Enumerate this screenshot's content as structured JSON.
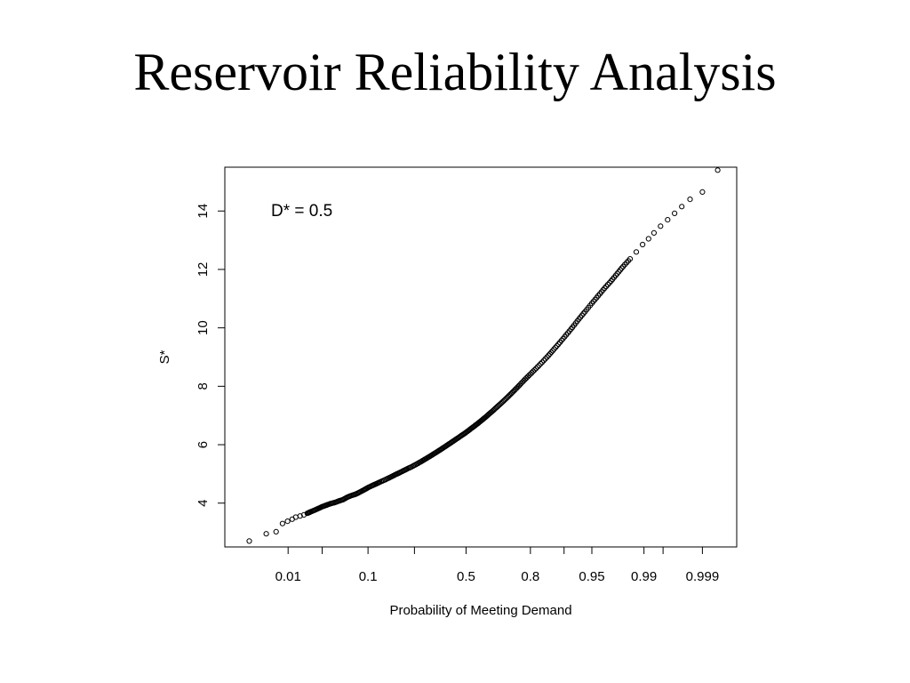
{
  "slide": {
    "title": "Reservoir Reliability Analysis"
  },
  "chart_data": {
    "type": "scatter",
    "annotation": "D* = 0.5",
    "xlabel": "Probability of Meeting Demand",
    "ylabel": "S*",
    "x_scale": "normal-probability",
    "x_ticks": [
      0.01,
      0.03,
      0.1,
      0.25,
      0.5,
      0.8,
      0.9,
      0.95,
      0.99,
      0.995,
      0.999
    ],
    "x_tick_labels": [
      "0.01",
      "",
      "0.1",
      "",
      "0.5",
      "0.8",
      "",
      "0.95",
      "0.99",
      "",
      "0.999"
    ],
    "y_ticks": [
      4,
      6,
      8,
      10,
      12,
      14
    ],
    "ylim": [
      2.5,
      15.5
    ],
    "xlim_probability": [
      0.0015,
      0.9996
    ],
    "grid": false,
    "marker": "open-circle",
    "points": [
      [
        0.0023,
        2.7
      ],
      [
        0.0045,
        2.95
      ],
      [
        0.0065,
        3.02
      ],
      [
        0.0082,
        3.3
      ],
      [
        0.0098,
        3.38
      ],
      [
        0.0115,
        3.45
      ],
      [
        0.013,
        3.52
      ],
      [
        0.015,
        3.56
      ],
      [
        0.017,
        3.6
      ],
      [
        0.019,
        3.65
      ],
      [
        0.021,
        3.7
      ],
      [
        0.024,
        3.76
      ],
      [
        0.027,
        3.82
      ],
      [
        0.03,
        3.88
      ],
      [
        0.034,
        3.93
      ],
      [
        0.038,
        3.98
      ],
      [
        0.043,
        4.02
      ],
      [
        0.048,
        4.07
      ],
      [
        0.054,
        4.12
      ],
      [
        0.06,
        4.2
      ],
      [
        0.067,
        4.26
      ],
      [
        0.075,
        4.31
      ],
      [
        0.083,
        4.38
      ],
      [
        0.092,
        4.46
      ],
      [
        0.1,
        4.53
      ],
      [
        0.11,
        4.6
      ],
      [
        0.12,
        4.66
      ],
      [
        0.13,
        4.72
      ],
      [
        0.145,
        4.8
      ],
      [
        0.16,
        4.88
      ],
      [
        0.175,
        4.96
      ],
      [
        0.19,
        5.03
      ],
      [
        0.205,
        5.1
      ],
      [
        0.22,
        5.17
      ],
      [
        0.24,
        5.25
      ],
      [
        0.26,
        5.34
      ],
      [
        0.28,
        5.43
      ],
      [
        0.3,
        5.52
      ],
      [
        0.32,
        5.61
      ],
      [
        0.34,
        5.7
      ],
      [
        0.36,
        5.79
      ],
      [
        0.38,
        5.88
      ],
      [
        0.4,
        5.97
      ],
      [
        0.42,
        6.06
      ],
      [
        0.44,
        6.15
      ],
      [
        0.46,
        6.24
      ],
      [
        0.48,
        6.33
      ],
      [
        0.5,
        6.42
      ],
      [
        0.52,
        6.52
      ],
      [
        0.54,
        6.62
      ],
      [
        0.56,
        6.72
      ],
      [
        0.58,
        6.83
      ],
      [
        0.6,
        6.94
      ],
      [
        0.62,
        7.06
      ],
      [
        0.64,
        7.18
      ],
      [
        0.66,
        7.31
      ],
      [
        0.68,
        7.44
      ],
      [
        0.7,
        7.58
      ],
      [
        0.72,
        7.73
      ],
      [
        0.74,
        7.89
      ],
      [
        0.76,
        8.06
      ],
      [
        0.78,
        8.24
      ],
      [
        0.8,
        8.42
      ],
      [
        0.82,
        8.61
      ],
      [
        0.84,
        8.82
      ],
      [
        0.86,
        9.06
      ],
      [
        0.875,
        9.27
      ],
      [
        0.89,
        9.5
      ],
      [
        0.905,
        9.76
      ],
      [
        0.918,
        10.02
      ],
      [
        0.93,
        10.3
      ],
      [
        0.94,
        10.55
      ],
      [
        0.95,
        10.84
      ],
      [
        0.958,
        11.1
      ],
      [
        0.965,
        11.36
      ],
      [
        0.971,
        11.6
      ],
      [
        0.976,
        11.86
      ],
      [
        0.98,
        12.1
      ],
      [
        0.984,
        12.36
      ],
      [
        0.987,
        12.6
      ],
      [
        0.9895,
        12.85
      ],
      [
        0.9915,
        13.05
      ],
      [
        0.993,
        13.25
      ],
      [
        0.9945,
        13.48
      ],
      [
        0.9958,
        13.7
      ],
      [
        0.9968,
        13.92
      ],
      [
        0.9976,
        14.15
      ],
      [
        0.9983,
        14.4
      ],
      [
        0.999,
        14.65
      ],
      [
        0.9995,
        15.4
      ]
    ]
  }
}
